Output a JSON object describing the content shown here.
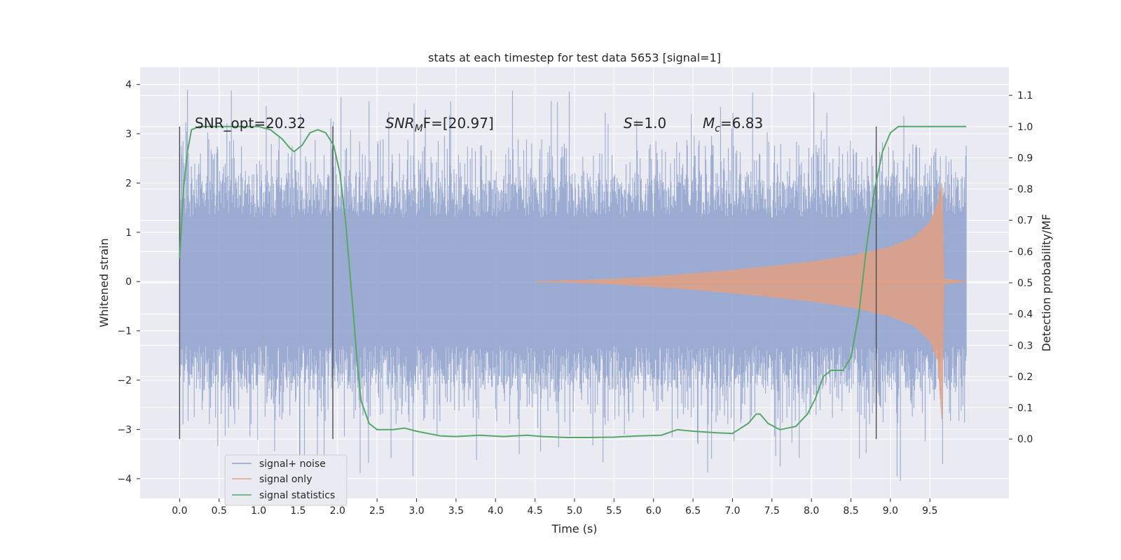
{
  "chart_data": {
    "type": "line",
    "title": "stats at each timestep for test data 5653 [signal=1]",
    "xlabel": "Time (s)",
    "ylabel": "Whitened strain",
    "ylabel_right": "Detection probability/MF",
    "xlim": [
      -0.5,
      10.5
    ],
    "ylim": [
      -4.4,
      4.35
    ],
    "ylim_right": [
      -0.19,
      1.19
    ],
    "x_ticks": [
      0.0,
      0.5,
      1.0,
      1.5,
      2.0,
      2.5,
      3.0,
      3.5,
      4.0,
      4.5,
      5.0,
      5.5,
      6.0,
      6.5,
      7.0,
      7.5,
      8.0,
      8.5,
      9.0,
      9.5
    ],
    "x_tick_labels": [
      "0.0",
      "0.5",
      "1.0",
      "1.5",
      "2.0",
      "2.5",
      "3.0",
      "3.5",
      "4.0",
      "4.5",
      "5.0",
      "5.5",
      "6.0",
      "6.5",
      "7.0",
      "7.5",
      "8.0",
      "8.5",
      "9.0",
      "9.5"
    ],
    "y_ticks": [
      -4,
      -3,
      -2,
      -1,
      0,
      1,
      2,
      3,
      4
    ],
    "y_tick_labels": [
      "−4",
      "−3",
      "−2",
      "−1",
      "0",
      "1",
      "2",
      "3",
      "4"
    ],
    "y_right_ticks": [
      0.0,
      0.1,
      0.2,
      0.3,
      0.4,
      0.5,
      0.6,
      0.7,
      0.8,
      0.9,
      1.0,
      1.1
    ],
    "y_right_tick_labels": [
      "0.0",
      "0.1",
      "0.2",
      "0.3",
      "0.4",
      "0.5",
      "0.6",
      "0.7",
      "0.8",
      "0.9",
      "1.0",
      "1.1"
    ],
    "grid": true,
    "legend_position": "lower-left",
    "annotations": {
      "snr_opt": "SNR_opt=20.32",
      "snr_mf_base": "SNR",
      "snr_mf_sub": "M",
      "snr_mf_tail": "F=[20.97]",
      "s_label": "S",
      "s_value": "=1.0",
      "mc_base": "M",
      "mc_sub": "c",
      "mc_value": "=6.83"
    },
    "vertical_markers": [
      0.0,
      1.94,
      8.82
    ],
    "series": [
      {
        "name": "signal+ noise",
        "color": "#8da0cb",
        "axis": "left",
        "note": "dense whitened strain, amplitude envelope approx ±2 with peaks up to ~3.9 and down to ~-4.1",
        "x_range": [
          0.0,
          9.96
        ],
        "envelope_peak": 3.9,
        "envelope_trough": -4.1
      },
      {
        "name": "signal only",
        "color": "#e5a07f",
        "axis": "left",
        "note": "chirp signal growing from ~0 at t=4.5 to ~±2 at t=9.65, then ringdown",
        "x": [
          4.5,
          5.0,
          5.5,
          6.0,
          6.5,
          7.0,
          7.5,
          8.0,
          8.5,
          9.0,
          9.3,
          9.5,
          9.6,
          9.65,
          9.68,
          9.96
        ],
        "amplitude": [
          0.0,
          0.02,
          0.05,
          0.1,
          0.16,
          0.23,
          0.31,
          0.4,
          0.52,
          0.7,
          0.9,
          1.2,
          1.6,
          2.0,
          0.05,
          0.0
        ]
      },
      {
        "name": "signal statistics",
        "color": "#55a868",
        "axis": "right",
        "x": [
          0.0,
          0.05,
          0.1,
          0.15,
          0.25,
          0.5,
          0.75,
          1.0,
          1.15,
          1.3,
          1.4,
          1.45,
          1.55,
          1.65,
          1.75,
          1.85,
          1.95,
          2.03,
          2.1,
          2.15,
          2.2,
          2.25,
          2.3,
          2.4,
          2.5,
          2.7,
          2.85,
          3.0,
          3.3,
          3.5,
          3.8,
          4.1,
          4.4,
          4.6,
          4.9,
          5.2,
          5.5,
          5.8,
          6.1,
          6.3,
          6.5,
          6.8,
          7.0,
          7.2,
          7.3,
          7.35,
          7.45,
          7.6,
          7.8,
          7.95,
          8.05,
          8.15,
          8.25,
          8.4,
          8.5,
          8.6,
          8.7,
          8.8,
          8.9,
          9.0,
          9.1,
          9.2,
          9.4,
          9.6,
          9.96
        ],
        "y": [
          0.58,
          0.8,
          0.92,
          0.99,
          1.0,
          1.0,
          1.0,
          1.0,
          0.99,
          0.96,
          0.93,
          0.92,
          0.94,
          0.98,
          0.99,
          0.98,
          0.94,
          0.85,
          0.7,
          0.55,
          0.4,
          0.24,
          0.12,
          0.05,
          0.03,
          0.03,
          0.035,
          0.025,
          0.01,
          0.008,
          0.012,
          0.008,
          0.012,
          0.008,
          0.005,
          0.005,
          0.006,
          0.01,
          0.012,
          0.03,
          0.025,
          0.02,
          0.018,
          0.05,
          0.08,
          0.08,
          0.05,
          0.03,
          0.04,
          0.08,
          0.13,
          0.2,
          0.22,
          0.22,
          0.26,
          0.4,
          0.62,
          0.8,
          0.92,
          0.98,
          1.0,
          1.0,
          1.0,
          1.0,
          1.0
        ]
      }
    ]
  }
}
